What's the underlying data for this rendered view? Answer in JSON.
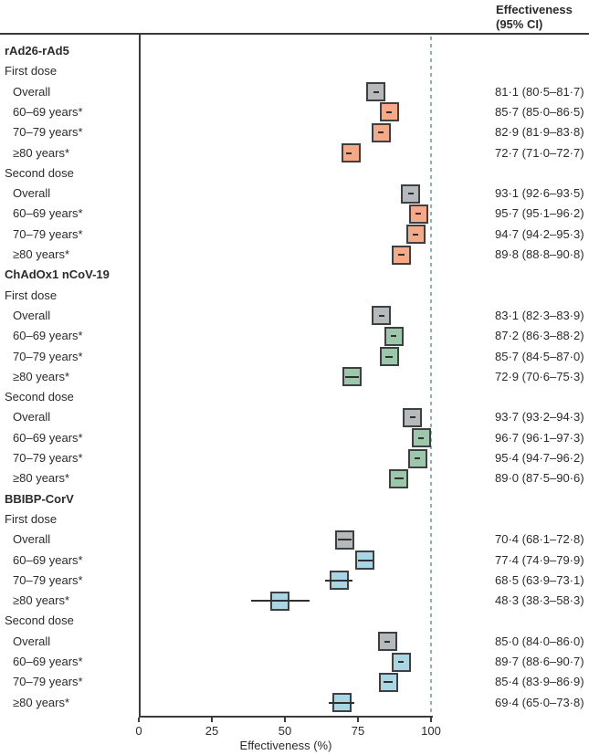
{
  "header": {
    "line1": "Effectiveness",
    "line2": "(95% CI)"
  },
  "axis": {
    "title": "Effectiveness (%)",
    "ticks": [
      0,
      25,
      50,
      75,
      100
    ],
    "min": 0,
    "max": 100,
    "reference_line": 100
  },
  "colors": {
    "overall_gray": "#b5b9bc",
    "rad26_orange": "#f5a987",
    "chadox_green": "#9cc7aa",
    "bbibp_blue": "#a9d6e5",
    "box_border": "#3d3f41",
    "reference_dash": "#8fb0bc"
  },
  "chart_data": {
    "type": "forest",
    "title": "",
    "xlabel": "Effectiveness (%)",
    "xlim": [
      0,
      100
    ],
    "x_ticks": [
      0,
      25,
      50,
      75,
      100
    ],
    "reference_line_x": 100,
    "value_column_header": "Effectiveness (95% CI)",
    "groups": [
      {
        "name": "rAd26-rAd5",
        "doses": [
          {
            "name": "First dose",
            "rows": [
              {
                "label": "Overall",
                "est": 81.1,
                "lo": 80.5,
                "hi": 81.7,
                "display": "81·1 (80·5–81·7)",
                "color": "#b5b9bc"
              },
              {
                "label": "60–69 years*",
                "est": 85.7,
                "lo": 85.0,
                "hi": 86.5,
                "display": "85·7 (85·0–86·5)",
                "color": "#f5a987"
              },
              {
                "label": "70–79 years*",
                "est": 82.9,
                "lo": 81.9,
                "hi": 83.8,
                "display": "82·9 (81·9–83·8)",
                "color": "#f5a987"
              },
              {
                "label": "≥80 years*",
                "est": 72.7,
                "lo": 71.0,
                "hi": 72.7,
                "display": "72·7 (71·0–72·7)",
                "color": "#f5a987"
              }
            ]
          },
          {
            "name": "Second dose",
            "rows": [
              {
                "label": "Overall",
                "est": 93.1,
                "lo": 92.6,
                "hi": 93.5,
                "display": "93·1 (92·6–93·5)",
                "color": "#b5b9bc"
              },
              {
                "label": "60–69 years*",
                "est": 95.7,
                "lo": 95.1,
                "hi": 96.2,
                "display": "95·7 (95·1–96·2)",
                "color": "#f5a987"
              },
              {
                "label": "70–79 years*",
                "est": 94.7,
                "lo": 94.2,
                "hi": 95.3,
                "display": "94·7 (94·2–95·3)",
                "color": "#f5a987"
              },
              {
                "label": "≥80 years*",
                "est": 89.8,
                "lo": 88.8,
                "hi": 90.8,
                "display": "89·8 (88·8–90·8)",
                "color": "#f5a987"
              }
            ]
          }
        ]
      },
      {
        "name": "ChAdOx1 nCoV-19",
        "doses": [
          {
            "name": "First dose",
            "rows": [
              {
                "label": "Overall",
                "est": 83.1,
                "lo": 82.3,
                "hi": 83.9,
                "display": "83·1 (82·3–83·9)",
                "color": "#b5b9bc"
              },
              {
                "label": "60–69 years*",
                "est": 87.2,
                "lo": 86.3,
                "hi": 88.2,
                "display": "87·2 (86·3–88·2)",
                "color": "#9cc7aa"
              },
              {
                "label": "70–79 years*",
                "est": 85.7,
                "lo": 84.5,
                "hi": 87.0,
                "display": "85·7 (84·5–87·0)",
                "color": "#9cc7aa"
              },
              {
                "label": "≥80 years*",
                "est": 72.9,
                "lo": 70.6,
                "hi": 75.3,
                "display": "72·9 (70·6–75·3)",
                "color": "#9cc7aa"
              }
            ]
          },
          {
            "name": "Second dose",
            "rows": [
              {
                "label": "Overall",
                "est": 93.7,
                "lo": 93.2,
                "hi": 94.3,
                "display": "93·7 (93·2–94·3)",
                "color": "#b5b9bc"
              },
              {
                "label": "60–69 years*",
                "est": 96.7,
                "lo": 96.1,
                "hi": 97.3,
                "display": "96·7 (96·1–97·3)",
                "color": "#9cc7aa"
              },
              {
                "label": "70–79 years*",
                "est": 95.4,
                "lo": 94.7,
                "hi": 96.2,
                "display": "95·4 (94·7–96·2)",
                "color": "#9cc7aa"
              },
              {
                "label": "≥80 years*",
                "est": 89.0,
                "lo": 87.5,
                "hi": 90.6,
                "display": "89·0 (87·5–90·6)",
                "color": "#9cc7aa"
              }
            ]
          }
        ]
      },
      {
        "name": "BBIBP-CorV",
        "doses": [
          {
            "name": "First dose",
            "rows": [
              {
                "label": "Overall",
                "est": 70.4,
                "lo": 68.1,
                "hi": 72.8,
                "display": "70·4 (68·1–72·8)",
                "color": "#b5b9bc"
              },
              {
                "label": "60–69 years*",
                "est": 77.4,
                "lo": 74.9,
                "hi": 79.9,
                "display": "77·4 (74·9–79·9)",
                "color": "#a9d6e5"
              },
              {
                "label": "70–79 years*",
                "est": 68.5,
                "lo": 63.9,
                "hi": 73.1,
                "display": "68·5 (63·9–73·1)",
                "color": "#a9d6e5"
              },
              {
                "label": "≥80 years*",
                "est": 48.3,
                "lo": 38.3,
                "hi": 58.3,
                "display": "48·3 (38·3–58·3)",
                "color": "#a9d6e5"
              }
            ]
          },
          {
            "name": "Second dose",
            "rows": [
              {
                "label": "Overall",
                "est": 85.0,
                "lo": 84.0,
                "hi": 86.0,
                "display": "85·0 (84·0–86·0)",
                "color": "#b5b9bc"
              },
              {
                "label": "60–69 years*",
                "est": 89.7,
                "lo": 88.6,
                "hi": 90.7,
                "display": "89·7 (88·6–90·7)",
                "color": "#a9d6e5"
              },
              {
                "label": "70–79 years*",
                "est": 85.4,
                "lo": 83.9,
                "hi": 86.9,
                "display": "85·4 (83·9–86·9)",
                "color": "#a9d6e5"
              },
              {
                "label": "≥80 years*",
                "est": 69.4,
                "lo": 65.0,
                "hi": 73.8,
                "display": "69·4 (65·0–73·8)",
                "color": "#a9d6e5"
              }
            ]
          }
        ]
      }
    ]
  }
}
